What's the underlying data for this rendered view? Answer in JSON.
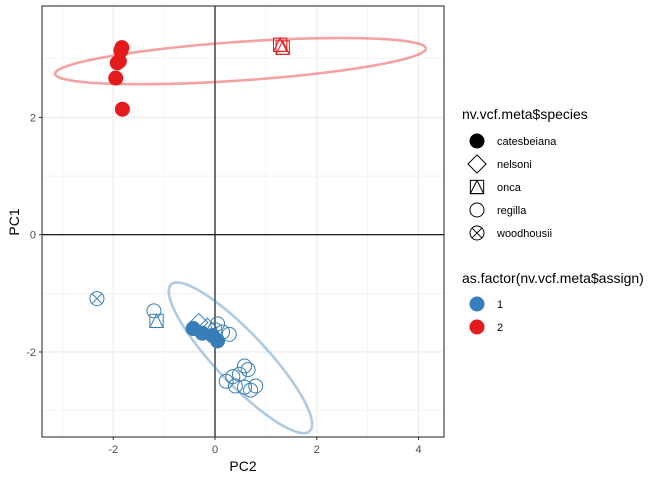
{
  "chart_data": {
    "type": "scatter",
    "xlabel": "PC2",
    "ylabel": "PC1",
    "xlim": [
      -3.4,
      4.5
    ],
    "ylim": [
      -3.45,
      3.9
    ],
    "x_ticks": [
      -2,
      0,
      2,
      4
    ],
    "y_ticks": [
      -2,
      0,
      2
    ],
    "x_tick_labels": [
      "-2",
      "0",
      "2",
      "4"
    ],
    "y_tick_labels": [
      "-2",
      "0",
      "2"
    ],
    "grid": true,
    "reference_lines": {
      "x": 0,
      "y": 0
    },
    "legend_placement": "right",
    "shape_legend": {
      "title": "nv.vcf.meta$species",
      "entries": [
        {
          "label": "catesbeiana",
          "shape": "circle-filled"
        },
        {
          "label": "nelsoni",
          "shape": "diamond-open"
        },
        {
          "label": "onca",
          "shape": "triangle-square-open"
        },
        {
          "label": "regilla",
          "shape": "circle-open"
        },
        {
          "label": "woodhousii",
          "shape": "circle-x-open"
        }
      ]
    },
    "color_legend": {
      "title": "as.factor(nv.vcf.meta$assign)",
      "entries": [
        {
          "label": "1",
          "color": "#377eb8"
        },
        {
          "label": "2",
          "color": "#e41a1c"
        }
      ]
    },
    "ellipses": [
      {
        "group": "2",
        "color": "#e41a1c",
        "center": [
          0.5,
          2.96
        ],
        "semi_axes": [
          3.65,
          0.33
        ],
        "angle_deg": 3.4
      },
      {
        "group": "1",
        "color": "#377eb8",
        "center": [
          0.5,
          -2.1
        ],
        "semi_axes": [
          1.85,
          0.46
        ],
        "angle_deg": -42
      }
    ],
    "points": [
      {
        "x": -1.83,
        "y": 3.19,
        "species": "catesbeiana",
        "group": "2"
      },
      {
        "x": -1.85,
        "y": 3.14,
        "species": "catesbeiana",
        "group": "2"
      },
      {
        "x": -1.88,
        "y": 2.96,
        "species": "catesbeiana",
        "group": "2"
      },
      {
        "x": -1.92,
        "y": 2.93,
        "species": "catesbeiana",
        "group": "2"
      },
      {
        "x": -1.95,
        "y": 2.67,
        "species": "catesbeiana",
        "group": "2"
      },
      {
        "x": -1.82,
        "y": 2.14,
        "species": "catesbeiana",
        "group": "2"
      },
      {
        "x": 1.28,
        "y": 3.24,
        "species": "onca",
        "group": "2"
      },
      {
        "x": 1.33,
        "y": 3.19,
        "species": "onca",
        "group": "2"
      },
      {
        "x": -2.32,
        "y": -1.09,
        "species": "woodhousii",
        "group": "1"
      },
      {
        "x": -1.2,
        "y": -1.3,
        "species": "regilla",
        "group": "1"
      },
      {
        "x": -1.15,
        "y": -1.47,
        "species": "onca",
        "group": "1"
      },
      {
        "x": -0.43,
        "y": -1.6,
        "species": "catesbeiana",
        "group": "1"
      },
      {
        "x": -0.25,
        "y": -1.68,
        "species": "catesbeiana",
        "group": "1"
      },
      {
        "x": -0.05,
        "y": -1.72,
        "species": "catesbeiana",
        "group": "1"
      },
      {
        "x": 0.05,
        "y": -1.81,
        "species": "catesbeiana",
        "group": "1"
      },
      {
        "x": -0.32,
        "y": -1.5,
        "species": "nelsoni",
        "group": "1"
      },
      {
        "x": -0.15,
        "y": -1.58,
        "species": "nelsoni",
        "group": "1"
      },
      {
        "x": 0.0,
        "y": -1.62,
        "species": "regilla",
        "group": "1"
      },
      {
        "x": 0.15,
        "y": -1.66,
        "species": "regilla",
        "group": "1"
      },
      {
        "x": 0.28,
        "y": -1.7,
        "species": "regilla",
        "group": "1"
      },
      {
        "x": 0.05,
        "y": -1.52,
        "species": "regilla",
        "group": "1"
      },
      {
        "x": 0.58,
        "y": -2.24,
        "species": "regilla",
        "group": "1"
      },
      {
        "x": 0.65,
        "y": -2.3,
        "species": "regilla",
        "group": "1"
      },
      {
        "x": 0.48,
        "y": -2.38,
        "species": "regilla",
        "group": "1"
      },
      {
        "x": 0.35,
        "y": -2.42,
        "species": "regilla",
        "group": "1"
      },
      {
        "x": 0.22,
        "y": -2.5,
        "species": "regilla",
        "group": "1"
      },
      {
        "x": 0.4,
        "y": -2.58,
        "species": "regilla",
        "group": "1"
      },
      {
        "x": 0.58,
        "y": -2.6,
        "species": "regilla",
        "group": "1"
      },
      {
        "x": 0.8,
        "y": -2.58,
        "species": "regilla",
        "group": "1"
      },
      {
        "x": 0.7,
        "y": -2.65,
        "species": "regilla",
        "group": "1"
      }
    ]
  }
}
